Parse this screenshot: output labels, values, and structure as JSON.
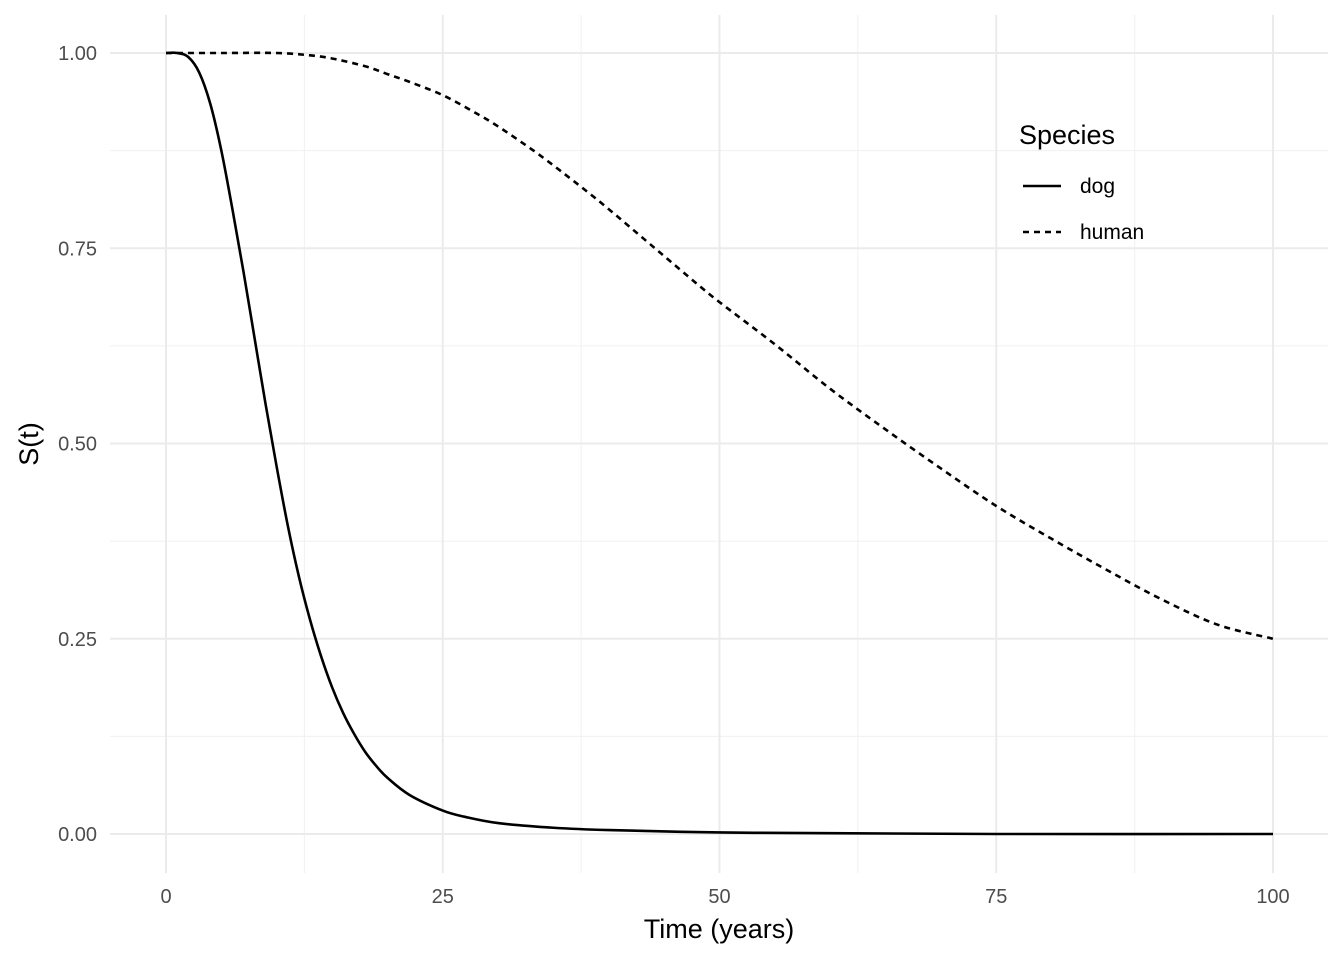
{
  "chart_data": {
    "type": "line",
    "xlabel": "Time (years)",
    "ylabel": "S(t)",
    "xlim": [
      0,
      100
    ],
    "ylim": [
      0,
      1
    ],
    "x_ticks": [
      0,
      25,
      50,
      75,
      100
    ],
    "x_tick_labels": [
      "0",
      "25",
      "50",
      "75",
      "100"
    ],
    "y_ticks": [
      0,
      0.25,
      0.5,
      0.75,
      1
    ],
    "y_tick_labels": [
      "0.00",
      "0.25",
      "0.50",
      "0.75",
      "1.00"
    ],
    "grid": true,
    "legend": {
      "title": "Species",
      "position": "top-right",
      "entries": [
        {
          "label": "dog",
          "linetype": "solid"
        },
        {
          "label": "human",
          "linetype": "dashed"
        }
      ]
    },
    "series": [
      {
        "name": "dog",
        "linetype": "solid",
        "color": "#000000",
        "x": [
          0,
          1,
          2,
          3,
          4,
          5,
          6,
          7,
          8,
          9,
          10,
          11,
          12,
          13,
          14,
          15,
          16,
          17,
          18,
          19,
          20,
          22,
          25,
          27,
          30,
          35,
          40,
          50,
          60,
          75,
          100
        ],
        "y": [
          1.0,
          1.0,
          0.995,
          0.975,
          0.935,
          0.875,
          0.8,
          0.72,
          0.635,
          0.55,
          0.47,
          0.395,
          0.33,
          0.275,
          0.228,
          0.188,
          0.155,
          0.128,
          0.105,
          0.087,
          0.072,
          0.05,
          0.03,
          0.022,
          0.014,
          0.008,
          0.005,
          0.002,
          0.001,
          0.0,
          0.0
        ]
      },
      {
        "name": "human",
        "linetype": "dashed",
        "color": "#000000",
        "x": [
          0,
          5,
          10,
          13,
          15,
          18,
          20,
          22,
          25,
          28,
          30,
          33,
          35,
          38,
          40,
          43,
          45,
          48,
          50,
          55,
          60,
          65,
          70,
          75,
          80,
          85,
          90,
          95,
          100
        ],
        "y": [
          1.0,
          1.0,
          1.0,
          0.997,
          0.993,
          0.983,
          0.973,
          0.963,
          0.946,
          0.923,
          0.906,
          0.877,
          0.856,
          0.823,
          0.8,
          0.764,
          0.74,
          0.704,
          0.681,
          0.627,
          0.57,
          0.518,
          0.468,
          0.42,
          0.378,
          0.338,
          0.3,
          0.268,
          0.25
        ]
      }
    ]
  }
}
